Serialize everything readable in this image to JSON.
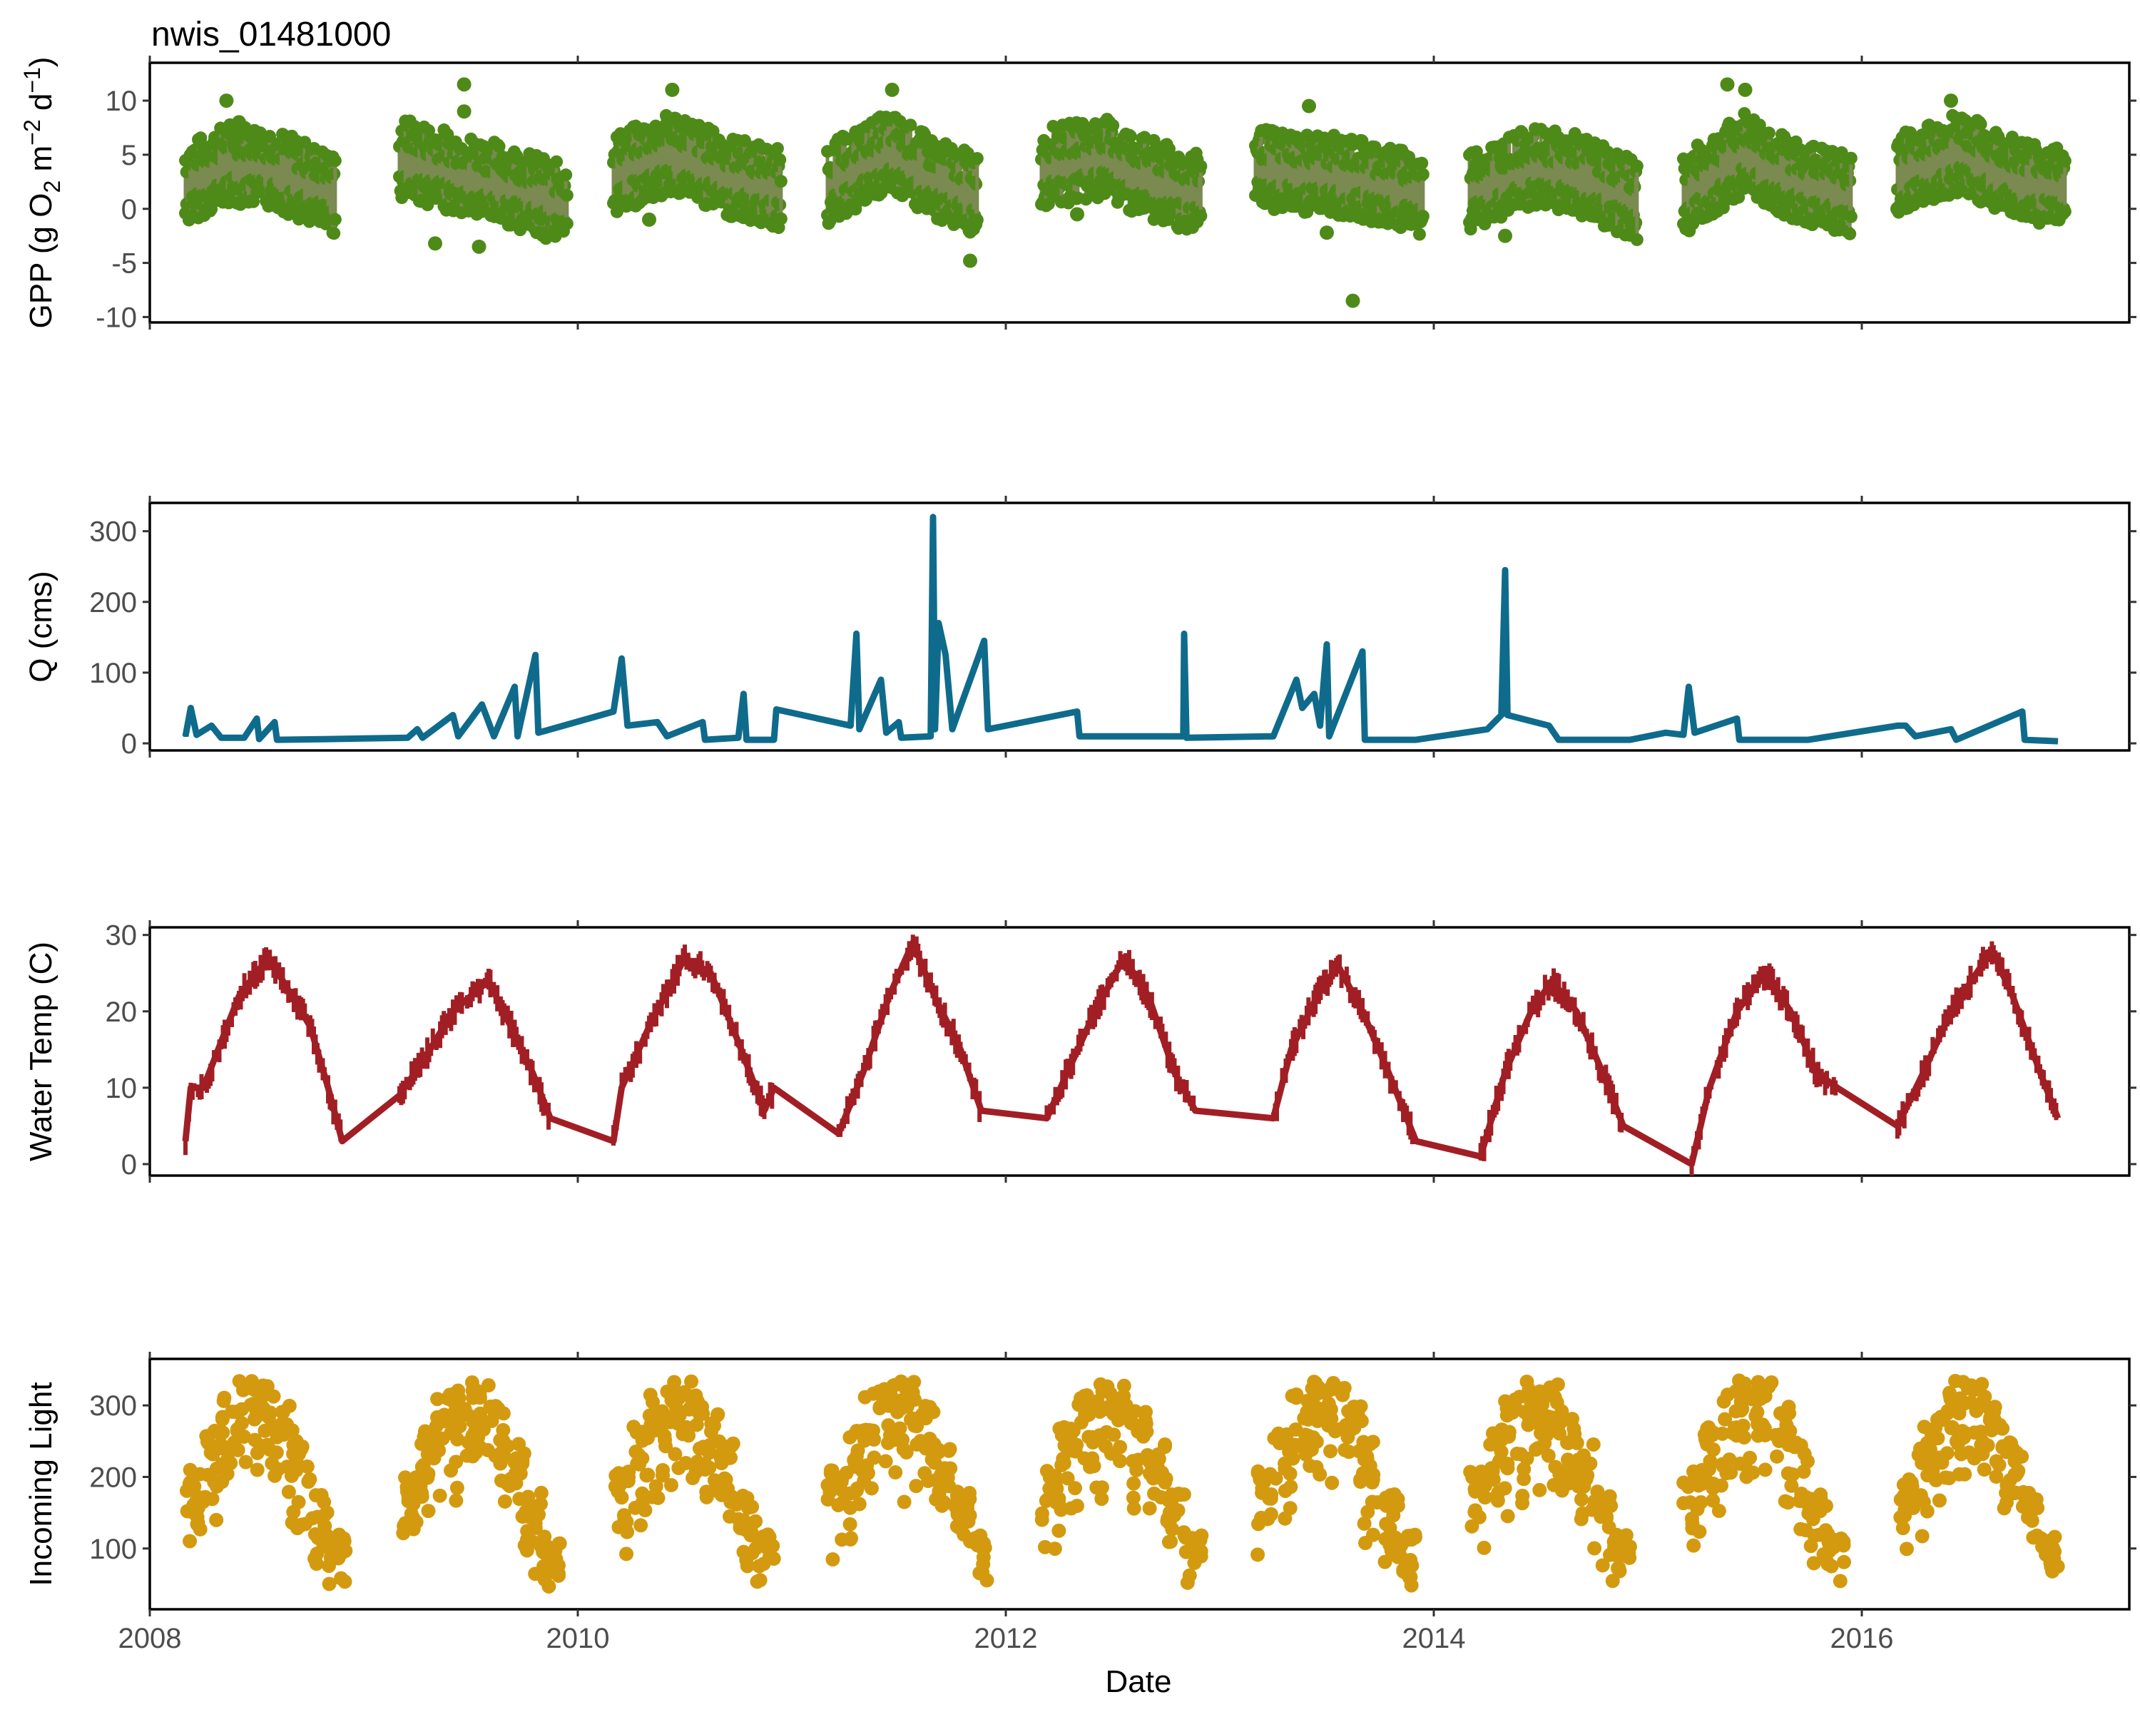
{
  "title": "nwis_01481000",
  "x_axis": {
    "label": "Date",
    "ticks": [
      "2008",
      "2010",
      "2012",
      "2014",
      "2016"
    ],
    "xlim": [
      "2008-01",
      "2017-04"
    ]
  },
  "colors": {
    "gpp": "#4e8a18",
    "gpp_band": "#7a8a50",
    "q": "#0f6b8c",
    "temp": "#a11f24",
    "light": "#d39a0f"
  },
  "chart_data": [
    {
      "id": "gpp",
      "type": "scatter",
      "ylabel": "GPP (g O₂ m⁻² d⁻¹)",
      "ylabel_main": "GPP (g  O",
      "ylabel_sub": "2",
      "ylabel_mid": " m",
      "ylabel_sup1": "−2",
      "ylabel_d": " d",
      "ylabel_sup2": "−1",
      "ylabel_close": ")",
      "ylim": [
        -10.5,
        13.5
      ],
      "yticks": [
        "10",
        "5",
        "0",
        "-5",
        "-10"
      ],
      "ytick_values": [
        10,
        5,
        0,
        -5,
        -10
      ],
      "grid": false,
      "series": [
        {
          "seasonal_mean": [
            [
              "2008-03-01",
              2.0
            ],
            [
              "2008-05-15",
              4.0
            ],
            [
              "2008-08-01",
              3.5
            ],
            [
              "2008-11-15",
              1.0
            ],
            [
              "2009-03-01",
              4.5
            ],
            [
              "2009-06-15",
              3.0
            ],
            [
              "2009-09-01",
              2.0
            ],
            [
              "2009-12-15",
              0.0
            ],
            [
              "2010-03-01",
              3.0
            ],
            [
              "2010-06-15",
              5.0
            ],
            [
              "2010-09-01",
              3.0
            ],
            [
              "2010-12-15",
              1.5
            ],
            [
              "2011-03-01",
              2.0
            ],
            [
              "2011-06-15",
              5.0
            ],
            [
              "2011-09-01",
              2.5
            ],
            [
              "2011-11-15",
              1.0
            ],
            [
              "2012-03-01",
              3.5
            ],
            [
              "2012-06-15",
              4.5
            ],
            [
              "2012-09-01",
              2.5
            ],
            [
              "2012-12-01",
              1.0
            ],
            [
              "2013-03-01",
              3.5
            ],
            [
              "2013-06-15",
              3.0
            ],
            [
              "2013-09-01",
              2.5
            ],
            [
              "2013-12-15",
              1.0
            ],
            [
              "2014-03-01",
              1.5
            ],
            [
              "2014-06-15",
              3.5
            ],
            [
              "2014-09-01",
              3.0
            ],
            [
              "2014-12-15",
              0.5
            ],
            [
              "2015-03-01",
              1.0
            ],
            [
              "2015-06-15",
              5.0
            ],
            [
              "2015-09-01",
              2.5
            ],
            [
              "2015-12-15",
              1.0
            ],
            [
              "2016-03-01",
              3.0
            ],
            [
              "2016-06-15",
              5.0
            ],
            [
              "2016-09-01",
              3.0
            ],
            [
              "2016-12-15",
              1.5
            ]
          ],
          "outliers": [
            [
              "2008-05-10",
              10.0
            ],
            [
              "2008-06-01",
              8.0
            ],
            [
              "2009-06-20",
              11.5
            ],
            [
              "2009-06-20",
              9.0
            ],
            [
              "2009-05-01",
              -3.2
            ],
            [
              "2009-07-15",
              -3.5
            ],
            [
              "2009-11-01",
              -2.3
            ],
            [
              "2010-06-10",
              11.0
            ],
            [
              "2010-05-01",
              -1.0
            ],
            [
              "2011-06-20",
              11.0
            ],
            [
              "2011-11-01",
              -4.8
            ],
            [
              "2012-05-01",
              -0.5
            ],
            [
              "2013-06-01",
              9.5
            ],
            [
              "2013-07-01",
              -2.2
            ],
            [
              "2013-08-15",
              -8.5
            ],
            [
              "2014-05-01",
              -2.5
            ],
            [
              "2015-05-15",
              11.5
            ],
            [
              "2015-06-15",
              11.0
            ],
            [
              "2016-06-01",
              10.0
            ],
            [
              "2016-03-01",
              0.0
            ]
          ]
        }
      ]
    },
    {
      "id": "q",
      "type": "line",
      "ylabel": "Q (cms)",
      "ylim": [
        -10,
        340
      ],
      "yticks": [
        "300",
        "200",
        "100",
        "0"
      ],
      "ytick_values": [
        300,
        200,
        100,
        0
      ],
      "grid": false,
      "series": [
        {
          "points": [
            [
              "2008-03-01",
              10
            ],
            [
              "2008-03-10",
              50
            ],
            [
              "2008-03-20",
              12
            ],
            [
              "2008-04-15",
              25
            ],
            [
              "2008-05-01",
              8
            ],
            [
              "2008-06-10",
              8
            ],
            [
              "2008-07-01",
              35
            ],
            [
              "2008-07-05",
              6
            ],
            [
              "2008-08-01",
              30
            ],
            [
              "2008-08-05",
              5
            ],
            [
              "2008-11-01",
              6
            ],
            [
              "2009-03-15",
              8
            ],
            [
              "2009-04-01",
              20
            ],
            [
              "2009-04-10",
              8
            ],
            [
              "2009-06-01",
              40
            ],
            [
              "2009-06-10",
              10
            ],
            [
              "2009-07-20",
              55
            ],
            [
              "2009-08-10",
              10
            ],
            [
              "2009-09-15",
              80
            ],
            [
              "2009-09-20",
              10
            ],
            [
              "2009-10-20",
              125
            ],
            [
              "2009-10-25",
              15
            ],
            [
              "2010-03-01",
              45
            ],
            [
              "2010-03-15",
              120
            ],
            [
              "2010-03-25",
              25
            ],
            [
              "2010-05-15",
              30
            ],
            [
              "2010-06-01",
              10
            ],
            [
              "2010-08-01",
              30
            ],
            [
              "2010-08-05",
              5
            ],
            [
              "2010-10-01",
              8
            ],
            [
              "2010-10-10",
              70
            ],
            [
              "2010-10-15",
              5
            ],
            [
              "2010-12-01",
              5
            ],
            [
              "2010-12-05",
              48
            ],
            [
              "2011-04-10",
              25
            ],
            [
              "2011-04-20",
              155
            ],
            [
              "2011-04-25",
              20
            ],
            [
              "2011-06-01",
              90
            ],
            [
              "2011-06-10",
              15
            ],
            [
              "2011-07-01",
              30
            ],
            [
              "2011-07-05",
              8
            ],
            [
              "2011-08-25",
              10
            ],
            [
              "2011-08-29",
              320
            ],
            [
              "2011-09-02",
              20
            ],
            [
              "2011-09-08",
              170
            ],
            [
              "2011-09-20",
              125
            ],
            [
              "2011-10-01",
              20
            ],
            [
              "2011-11-25",
              145
            ],
            [
              "2011-12-01",
              20
            ],
            [
              "2012-05-01",
              45
            ],
            [
              "2012-05-05",
              10
            ],
            [
              "2012-10-30",
              10
            ],
            [
              "2012-11-01",
              155
            ],
            [
              "2012-11-05",
              8
            ],
            [
              "2013-04-01",
              10
            ],
            [
              "2013-05-10",
              90
            ],
            [
              "2013-05-20",
              50
            ],
            [
              "2013-06-10",
              70
            ],
            [
              "2013-06-20",
              25
            ],
            [
              "2013-07-01",
              140
            ],
            [
              "2013-07-05",
              10
            ],
            [
              "2013-09-01",
              130
            ],
            [
              "2013-09-05",
              5
            ],
            [
              "2013-12-01",
              5
            ],
            [
              "2014-04-01",
              20
            ],
            [
              "2014-04-25",
              40
            ],
            [
              "2014-05-01",
              245
            ],
            [
              "2014-05-05",
              40
            ],
            [
              "2014-07-15",
              25
            ],
            [
              "2014-08-01",
              5
            ],
            [
              "2014-12-01",
              5
            ],
            [
              "2015-02-01",
              15
            ],
            [
              "2015-03-01",
              12
            ],
            [
              "2015-03-10",
              80
            ],
            [
              "2015-03-20",
              15
            ],
            [
              "2015-06-01",
              35
            ],
            [
              "2015-06-05",
              5
            ],
            [
              "2015-10-01",
              5
            ],
            [
              "2016-03-01",
              25
            ],
            [
              "2016-03-15",
              25
            ],
            [
              "2016-04-01",
              10
            ],
            [
              "2016-06-01",
              20
            ],
            [
              "2016-06-10",
              5
            ],
            [
              "2016-10-01",
              45
            ],
            [
              "2016-10-05",
              5
            ],
            [
              "2016-12-01",
              3
            ]
          ]
        }
      ]
    },
    {
      "id": "temp",
      "type": "line",
      "ylabel": "Water Temp (C)",
      "ylim": [
        -1.5,
        31
      ],
      "yticks": [
        "30",
        "20",
        "10",
        "0"
      ],
      "ytick_values": [
        30,
        20,
        10,
        0
      ],
      "grid": false,
      "series": [
        {
          "points": [
            [
              "2008-03-01",
              3
            ],
            [
              "2008-03-10",
              10
            ],
            [
              "2008-04-01",
              10
            ],
            [
              "2008-05-01",
              16
            ],
            [
              "2008-06-01",
              22
            ],
            [
              "2008-07-20",
              27
            ],
            [
              "2008-08-15",
              24
            ],
            [
              "2008-10-01",
              18
            ],
            [
              "2008-11-01",
              10
            ],
            [
              "2008-11-25",
              3
            ],
            [
              "2009-03-01",
              9
            ],
            [
              "2009-04-15",
              14
            ],
            [
              "2009-06-01",
              20
            ],
            [
              "2009-08-01",
              24
            ],
            [
              "2009-09-15",
              17
            ],
            [
              "2009-10-15",
              12
            ],
            [
              "2009-11-15",
              6
            ],
            [
              "2010-03-01",
              3
            ],
            [
              "2010-03-15",
              10
            ],
            [
              "2010-05-01",
              18
            ],
            [
              "2010-07-01",
              27
            ],
            [
              "2010-08-15",
              25
            ],
            [
              "2010-10-01",
              16
            ],
            [
              "2010-11-15",
              7
            ],
            [
              "2010-12-01",
              10
            ],
            [
              "2011-03-20",
              4
            ],
            [
              "2011-05-01",
              12
            ],
            [
              "2011-06-15",
              22
            ],
            [
              "2011-07-25",
              29
            ],
            [
              "2011-09-01",
              22
            ],
            [
              "2011-10-15",
              15
            ],
            [
              "2011-11-20",
              7
            ],
            [
              "2012-03-10",
              6
            ],
            [
              "2012-04-15",
              12
            ],
            [
              "2012-06-01",
              20
            ],
            [
              "2012-07-20",
              27
            ],
            [
              "2012-09-01",
              22
            ],
            [
              "2012-10-15",
              12
            ],
            [
              "2012-11-20",
              7
            ],
            [
              "2013-04-01",
              6
            ],
            [
              "2013-05-01",
              15
            ],
            [
              "2013-06-15",
              22
            ],
            [
              "2013-07-20",
              26
            ],
            [
              "2013-09-01",
              20
            ],
            [
              "2013-10-15",
              12
            ],
            [
              "2013-12-01",
              3
            ],
            [
              "2014-03-20",
              1
            ],
            [
              "2014-05-01",
              12
            ],
            [
              "2014-06-15",
              20
            ],
            [
              "2014-07-20",
              24
            ],
            [
              "2014-09-01",
              20
            ],
            [
              "2014-10-15",
              12
            ],
            [
              "2014-11-20",
              5
            ],
            [
              "2015-03-15",
              0
            ],
            [
              "2015-04-15",
              10
            ],
            [
              "2015-06-01",
              20
            ],
            [
              "2015-07-20",
              25
            ],
            [
              "2015-09-01",
              20
            ],
            [
              "2015-10-15",
              12
            ],
            [
              "2015-11-20",
              10
            ],
            [
              "2016-03-01",
              5
            ],
            [
              "2016-04-15",
              12
            ],
            [
              "2016-06-01",
              20
            ],
            [
              "2016-08-10",
              28
            ],
            [
              "2016-09-15",
              22
            ],
            [
              "2016-11-01",
              12
            ],
            [
              "2016-12-01",
              6
            ]
          ]
        }
      ]
    },
    {
      "id": "light",
      "type": "scatter",
      "ylabel": "Incoming Light",
      "ylim": [
        15,
        365
      ],
      "yticks": [
        "300",
        "200",
        "100"
      ],
      "ytick_values": [
        300,
        200,
        100
      ],
      "grid": false,
      "series": [
        {
          "envelope": [
            [
              3,
              210,
              80
            ],
            [
              4,
              270,
              100
            ],
            [
              5,
              320,
              130
            ],
            [
              6,
              335,
              150
            ],
            [
              7,
              335,
              160
            ],
            [
              8,
              300,
              130
            ],
            [
              9,
              250,
              90
            ],
            [
              10,
              180,
              60
            ],
            [
              11,
              120,
              40
            ]
          ],
          "points_per_month": 18
        }
      ]
    }
  ]
}
